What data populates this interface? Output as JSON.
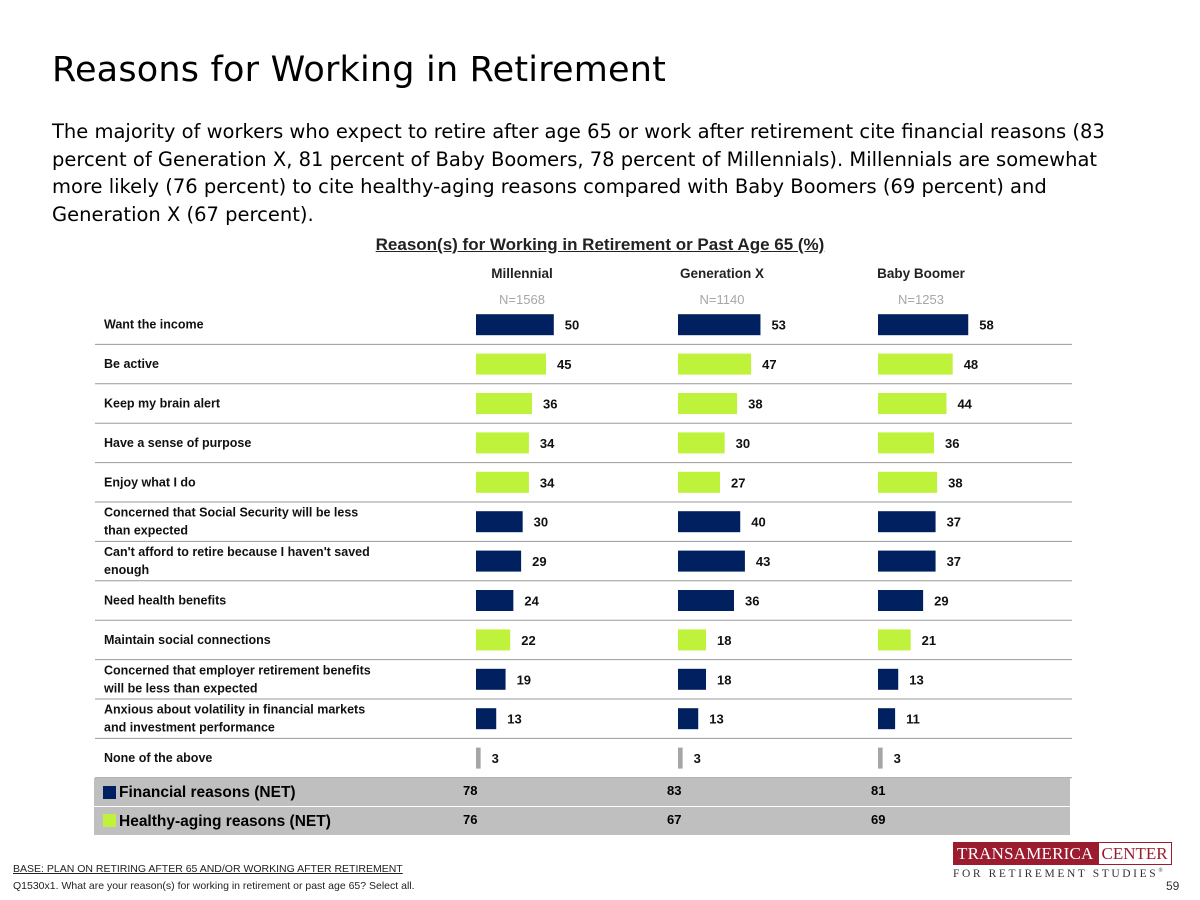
{
  "slide": {
    "title": "Reasons for Working in Retirement",
    "summary": "The majority of workers who expect to retire after age 65 or work after retirement cite financial reasons (83 percent of Generation X, 81 percent of Baby Boomers, 78 percent of Millennials). Millennials are somewhat more likely (76 percent) to cite healthy-aging reasons compared with Baby Boomers (69 percent) and Generation X (67 percent).",
    "page_number": "59"
  },
  "footer": {
    "base": "BASE:  PLAN ON RETIRING AFTER 65 AND/OR WORKING AFTER RETIREMENT",
    "question": "Q1530x1. What are your reason(s) for working in retirement or past age 65? Select all."
  },
  "logo": {
    "word1": "TRANSAMERICA",
    "word2": "CENTER",
    "tagline": "FOR RETIREMENT STUDIES",
    "reg": "®"
  },
  "colors": {
    "financial": "#002060",
    "healthy": "#bff23b",
    "none": "#a6a6a6",
    "net_background": "#bfbfbf"
  },
  "chart_data": {
    "type": "bar",
    "orientation": "horizontal",
    "title": "Reason(s) for Working in Retirement or Past Age 65 (%)",
    "categories": [
      "Want the income",
      "Be active",
      "Keep my brain alert",
      "Have a sense of purpose",
      "Enjoy what I do",
      "Concerned that Social Security will be less than expected",
      "Can't afford to retire because I haven't saved enough",
      "Need health benefits",
      "Maintain social connections",
      "Concerned that employer retirement benefits will be less than expected",
      "Anxious about volatility in financial markets and investment performance",
      "None of the above"
    ],
    "category_groups": [
      "financial",
      "healthy",
      "healthy",
      "healthy",
      "healthy",
      "financial",
      "financial",
      "financial",
      "healthy",
      "financial",
      "financial",
      "none"
    ],
    "series": [
      {
        "name": "Millennial",
        "n": "N=1568",
        "values": [
          50,
          45,
          36,
          34,
          34,
          30,
          29,
          24,
          22,
          19,
          13,
          3
        ]
      },
      {
        "name": "Generation X",
        "n": "N=1140",
        "values": [
          53,
          47,
          38,
          30,
          27,
          40,
          43,
          36,
          18,
          18,
          13,
          3
        ]
      },
      {
        "name": "Baby Boomer",
        "n": "N=1253",
        "values": [
          58,
          48,
          44,
          36,
          38,
          37,
          37,
          29,
          21,
          13,
          11,
          3
        ]
      }
    ],
    "xlim": [
      0,
      100
    ],
    "nets": [
      {
        "label": "Financial reasons (NET)",
        "group": "financial",
        "values": [
          78,
          83,
          81
        ]
      },
      {
        "label": "Healthy-aging reasons (NET)",
        "group": "healthy",
        "values": [
          76,
          67,
          69
        ]
      }
    ]
  }
}
